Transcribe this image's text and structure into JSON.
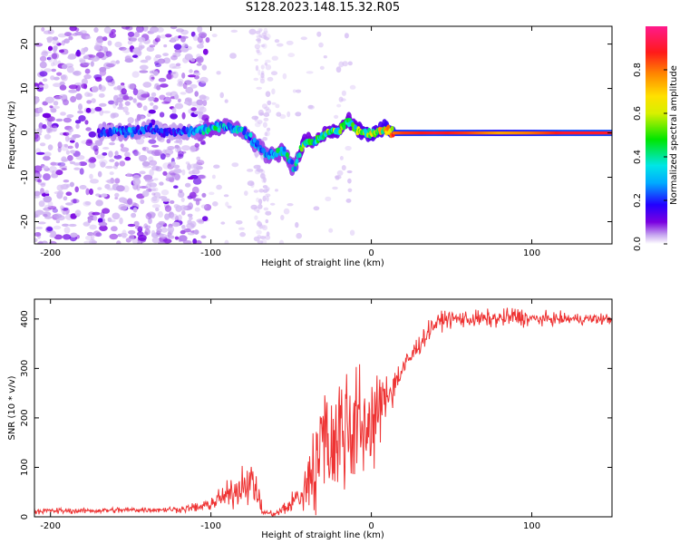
{
  "title": "S128.2023.148.15.32.R05",
  "colors": {
    "line": "#ee3333",
    "axis": "#000000"
  },
  "chart_data": [
    {
      "type": "heatmap",
      "xlabel": "Height of straight line (km)",
      "ylabel": "Frequency (Hz)",
      "xlim": [
        -210,
        150
      ],
      "ylim": [
        -25,
        24
      ],
      "xticks": [
        -200,
        -100,
        0,
        100
      ],
      "yticks": [
        -20,
        -10,
        0,
        10,
        20
      ],
      "grid": false,
      "colorbar": {
        "label": "Normalized spectral amplitude",
        "range": [
          0,
          1
        ],
        "ticks": [
          "0.0",
          "0.2",
          "0.4",
          "0.6",
          "0.8"
        ],
        "tick_values": [
          0.0,
          0.2,
          0.4,
          0.6,
          0.8
        ],
        "colormap": "rainbow (purple - blue - cyan - green - yellow - orange - red - magenta)"
      },
      "ridge": {
        "x": [
          -165,
          -150,
          -140,
          -125,
          -110,
          -100,
          -90,
          -80,
          -72,
          -65,
          -55,
          -48,
          -42,
          -35,
          -28,
          -20,
          -15,
          -8,
          0,
          8,
          14,
          20,
          40,
          60,
          80,
          100,
          120,
          150
        ],
        "y": [
          0,
          0.5,
          1,
          0,
          0.5,
          1,
          1.5,
          0.5,
          -2.5,
          -5,
          -4,
          -8,
          -2,
          -2,
          0,
          0.5,
          2.5,
          0.5,
          -0.5,
          1,
          0,
          0,
          0,
          0,
          0,
          0,
          0,
          0
        ],
        "amp": [
          0.18,
          0.25,
          0.2,
          0.15,
          0.25,
          0.35,
          0.3,
          0.3,
          0.3,
          0.3,
          0.35,
          0.3,
          0.45,
          0.35,
          0.45,
          0.5,
          0.4,
          0.5,
          0.55,
          0.6,
          0.8,
          0.85,
          0.9,
          0.85,
          0.75,
          0.8,
          0.9,
          0.9
        ]
      }
    },
    {
      "type": "line",
      "xlabel": "Height of straight line (km)",
      "ylabel": "SNR (10 * v/v)",
      "xlim": [
        -210,
        150
      ],
      "ylim": [
        0,
        440
      ],
      "xticks": [
        -200,
        -100,
        0,
        100
      ],
      "yticks": [
        0,
        100,
        200,
        300,
        400
      ],
      "grid": false,
      "series": [
        {
          "x": [
            -210,
            -180,
            -150,
            -120,
            -105,
            -95,
            -85,
            -78,
            -72,
            -68,
            -60,
            -50,
            -40,
            -35,
            -30,
            -25,
            -20,
            -15,
            -10,
            -5,
            0,
            5,
            10,
            20,
            30,
            38,
            45,
            60,
            80,
            90,
            100,
            120,
            150
          ],
          "y": [
            12,
            12,
            14,
            15,
            20,
            35,
            50,
            75,
            60,
            10,
            5,
            25,
            60,
            110,
            160,
            150,
            170,
            180,
            190,
            175,
            195,
            215,
            250,
            300,
            350,
            385,
            400,
            400,
            400,
            405,
            400,
            400,
            400
          ],
          "noise": [
            4,
            4,
            4,
            4,
            8,
            15,
            20,
            30,
            30,
            5,
            3,
            15,
            40,
            70,
            90,
            90,
            90,
            90,
            90,
            80,
            70,
            50,
            30,
            20,
            15,
            12,
            12,
            12,
            12,
            15,
            10,
            8,
            8
          ]
        }
      ]
    }
  ]
}
